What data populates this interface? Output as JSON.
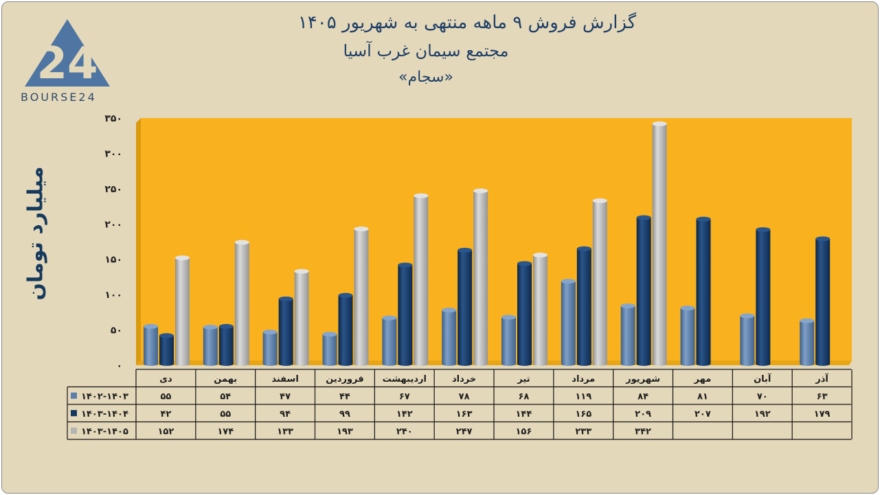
{
  "header": {
    "title": "گزارش  فروش ۹ ماهه منتهی به شهریور ۱۴۰۵",
    "company": "مجتمع سیمان غرب آسیا",
    "symbol": "«سجام»"
  },
  "logo": {
    "text": "BOURSE24",
    "mark": "24"
  },
  "colors": {
    "background": "#e4d8bb",
    "plot_area": "#f9b21d",
    "series_1": "#5b7faa",
    "series_2": "#133761",
    "series_3": "#b4b4b4",
    "text": "#1f3f66"
  },
  "chart_data": {
    "type": "bar",
    "ylabel": "میلیارد تومان",
    "ylim": [
      0,
      350
    ],
    "yticks": [
      "۰",
      "۵۰",
      "۱۰۰",
      "۱۵۰",
      "۲۰۰",
      "۲۵۰",
      "۳۰۰",
      "۳۵۰"
    ],
    "ytick_values": [
      0,
      50,
      100,
      150,
      200,
      250,
      300,
      350
    ],
    "categories": [
      "دی",
      "بهمن",
      "اسفند",
      "فروردین",
      "اردیبهشت",
      "خرداد",
      "تیر",
      "مرداد",
      "شهریور",
      "مهر",
      "آبان",
      "آذر"
    ],
    "series": [
      {
        "name": "۱۴۰۲-۱۴۰۳",
        "values": [
          55,
          54,
          47,
          44,
          67,
          78,
          68,
          119,
          84,
          81,
          70,
          63
        ],
        "labels": [
          "۵۵",
          "۵۴",
          "۴۷",
          "۴۴",
          "۶۷",
          "۷۸",
          "۶۸",
          "۱۱۹",
          "۸۴",
          "۸۱",
          "۷۰",
          "۶۳"
        ]
      },
      {
        "name": "۱۴۰۳-۱۴۰۴",
        "values": [
          42,
          55,
          94,
          99,
          142,
          163,
          144,
          165,
          209,
          207,
          192,
          179
        ],
        "labels": [
          "۴۲",
          "۵۵",
          "۹۴",
          "۹۹",
          "۱۴۲",
          "۱۶۳",
          "۱۴۴",
          "۱۶۵",
          "۲۰۹",
          "۲۰۷",
          "۱۹۲",
          "۱۷۹"
        ]
      },
      {
        "name": "۱۴۰۳-۱۴۰۵",
        "values": [
          152,
          174,
          133,
          193,
          240,
          247,
          156,
          233,
          342,
          null,
          null,
          null
        ],
        "labels": [
          "۱۵۲",
          "۱۷۴",
          "۱۳۳",
          "۱۹۳",
          "۲۴۰",
          "۲۴۷",
          "۱۵۶",
          "۲۳۳",
          "۳۴۲",
          "",
          "",
          ""
        ]
      }
    ],
    "grid": false,
    "legend": "data-table"
  }
}
